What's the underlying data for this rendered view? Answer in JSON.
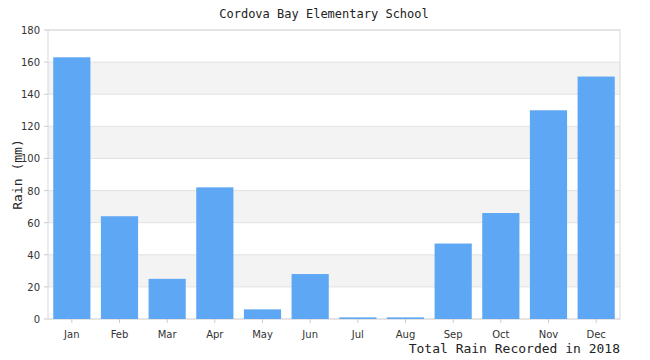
{
  "chart_data": {
    "type": "bar",
    "title": "Cordova Bay Elementary School",
    "y_label": "Rain (mm)",
    "x_label": "Total Rain Recorded in 2018",
    "categories": [
      "Jan",
      "Feb",
      "Mar",
      "Apr",
      "May",
      "Jun",
      "Jul",
      "Aug",
      "Sep",
      "Oct",
      "Nov",
      "Dec"
    ],
    "values": [
      163,
      64,
      25,
      82,
      6,
      28,
      1,
      1,
      47,
      66,
      130,
      151
    ],
    "color": "#5ea7f4",
    "ylim": [
      0,
      180
    ],
    "yticks": [
      0,
      20,
      40,
      60,
      80,
      100,
      120,
      140,
      160,
      180
    ],
    "grid": true
  }
}
